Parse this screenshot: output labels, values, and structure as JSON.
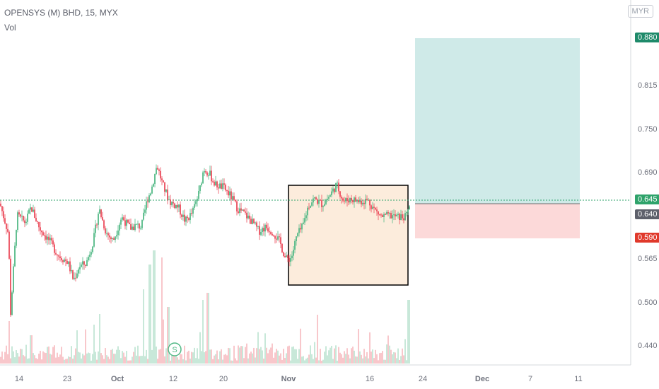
{
  "header": {
    "title": "OPENSYS (M) BHD, 15, MYX",
    "vol_label": "Vol"
  },
  "currency_button": "MYR",
  "price_tags": {
    "target": "0.880",
    "last_up": "0.645",
    "last_close": "0.640",
    "stop": "0.590"
  },
  "colors": {
    "up": "#53b987",
    "down": "#eb4d5c",
    "target_fill": "#cfeae8",
    "stop_fill": "#fcd9d9",
    "highlight_fill": "#fcecdc",
    "tag_green": "#1e8a6a",
    "tag_gray": "#5d606b",
    "tag_red": "#e0392b",
    "last_price_line": "#2fa36b"
  },
  "split_marker": "S",
  "chart_data": {
    "type": "candlestick",
    "title": "OPENSYS (M) BHD, 15, MYX",
    "y_ticks": [
      "0.880",
      "0.815",
      "0.750",
      "0.690",
      "0.645",
      "0.640",
      "0.565",
      "0.500",
      "0.440"
    ],
    "y_range": [
      0.42,
      0.905
    ],
    "x_ticks": [
      "14",
      "23",
      "Oct",
      "12",
      "20",
      "Nov",
      "16",
      "24",
      "Dec",
      "7",
      "11"
    ],
    "close_path": [
      [
        0,
        0.645
      ],
      [
        12,
        0.602
      ],
      [
        15,
        0.49
      ],
      [
        24,
        0.628
      ],
      [
        36,
        0.618
      ],
      [
        44,
        0.64
      ],
      [
        56,
        0.61
      ],
      [
        70,
        0.592
      ],
      [
        82,
        0.572
      ],
      [
        96,
        0.562
      ],
      [
        104,
        0.536
      ],
      [
        112,
        0.556
      ],
      [
        122,
        0.56
      ],
      [
        132,
        0.592
      ],
      [
        140,
        0.638
      ],
      [
        150,
        0.604
      ],
      [
        160,
        0.592
      ],
      [
        172,
        0.626
      ],
      [
        184,
        0.61
      ],
      [
        192,
        0.614
      ],
      [
        200,
        0.612
      ],
      [
        208,
        0.65
      ],
      [
        214,
        0.665
      ],
      [
        222,
        0.7
      ],
      [
        230,
        0.672
      ],
      [
        240,
        0.648
      ],
      [
        252,
        0.64
      ],
      [
        262,
        0.62
      ],
      [
        272,
        0.632
      ],
      [
        282,
        0.662
      ],
      [
        288,
        0.695
      ],
      [
        296,
        0.688
      ],
      [
        304,
        0.672
      ],
      [
        316,
        0.668
      ],
      [
        326,
        0.656
      ],
      [
        336,
        0.638
      ],
      [
        346,
        0.63
      ],
      [
        356,
        0.62
      ],
      [
        366,
        0.606
      ],
      [
        376,
        0.612
      ],
      [
        386,
        0.605
      ],
      [
        396,
        0.59
      ],
      [
        404,
        0.566
      ],
      [
        412,
        0.568
      ],
      [
        420,
        0.6
      ],
      [
        428,
        0.612
      ],
      [
        436,
        0.642
      ],
      [
        444,
        0.652
      ],
      [
        456,
        0.644
      ],
      [
        466,
        0.656
      ],
      [
        476,
        0.672
      ],
      [
        486,
        0.648
      ],
      [
        496,
        0.652
      ],
      [
        508,
        0.648
      ],
      [
        520,
        0.65
      ],
      [
        530,
        0.636
      ],
      [
        540,
        0.626
      ],
      [
        552,
        0.628
      ],
      [
        562,
        0.626
      ],
      [
        574,
        0.626
      ],
      [
        580,
        0.645
      ]
    ],
    "trade_box": {
      "entry": 0.64,
      "target": 0.88,
      "stop": 0.59
    },
    "highlight_range": {
      "top": 0.667,
      "bottom": 0.525
    }
  }
}
